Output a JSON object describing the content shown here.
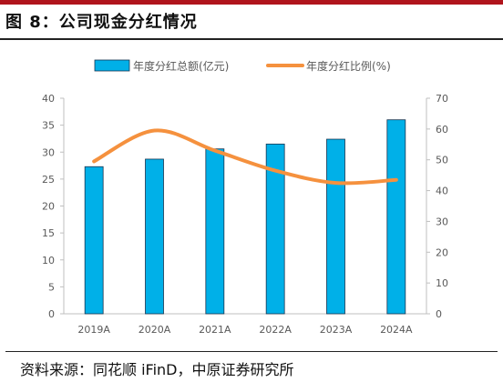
{
  "title": "图 8：公司现金分红情况",
  "source": "资料来源：同花顺 iFinD，中原证券研究所",
  "chart_data": {
    "type": "bar",
    "categories": [
      "2019A",
      "2020A",
      "2021A",
      "2022A",
      "2023A",
      "2024A"
    ],
    "series": [
      {
        "name": "年度分红总额(亿元)",
        "type": "bar",
        "axis": "left",
        "color": "#00b0e8",
        "values": [
          27.3,
          28.7,
          30.6,
          31.5,
          32.4,
          36.0
        ]
      },
      {
        "name": "年度分红比例(%)",
        "type": "line",
        "axis": "right",
        "color": "#f5913e",
        "values": [
          49.5,
          59.5,
          53.0,
          46.5,
          42.5,
          43.5
        ]
      }
    ],
    "y_left": {
      "min": 0,
      "max": 40,
      "step": 5,
      "ticks": [
        "0",
        "5",
        "10",
        "15",
        "20",
        "25",
        "30",
        "35",
        "40"
      ]
    },
    "y_right": {
      "min": 0,
      "max": 70,
      "step": 10,
      "ticks": [
        "0",
        "10",
        "20",
        "30",
        "40",
        "50",
        "60",
        "70"
      ]
    },
    "legend_position": "top",
    "grid": false,
    "bar_border": "#1a3550"
  }
}
